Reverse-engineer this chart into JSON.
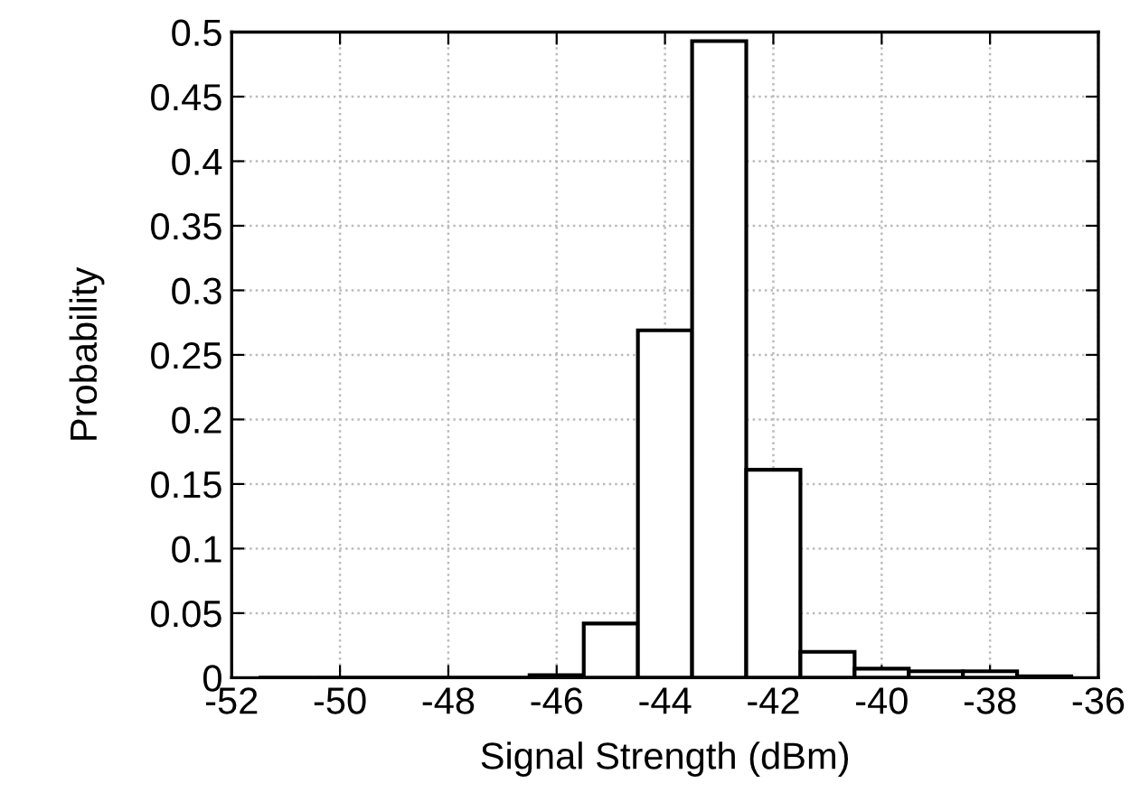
{
  "chart_data": {
    "type": "histogram",
    "xlabel": "Signal Strength (dBm)",
    "ylabel": "Probability",
    "bins": [
      -51.5,
      -50.5,
      -49.5,
      -48.5,
      -47.5,
      -46.5,
      -45.5,
      -44.5,
      -43.5,
      -42.5,
      -41.5,
      -40.5,
      -39.5,
      -38.5,
      -37.5,
      -36.5
    ],
    "values": [
      0,
      0,
      0,
      0,
      0,
      0.002,
      0.042,
      0.269,
      0.493,
      0.161,
      0.02,
      0.007,
      0.005,
      0.005,
      0.001
    ],
    "color": "#000000",
    "xlim": [
      -52,
      -36
    ],
    "xticks": [
      -52,
      -50,
      -48,
      -46,
      -44,
      -42,
      -40,
      -38,
      -36
    ],
    "ylim": [
      0,
      0.5
    ],
    "yticks": [
      0,
      0.05,
      0.1,
      0.15,
      0.2,
      0.25,
      0.3,
      0.35,
      0.4,
      0.45,
      0.5
    ],
    "grid": true
  }
}
